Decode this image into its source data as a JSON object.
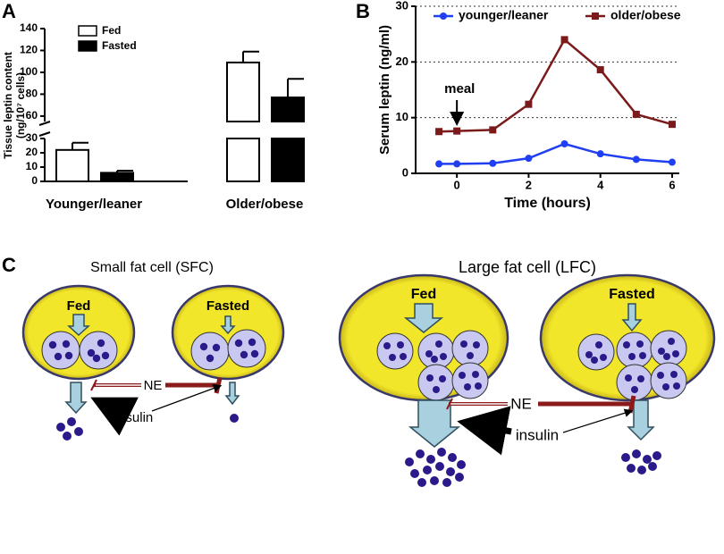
{
  "panels": {
    "a": "A",
    "b": "B",
    "c": "C"
  },
  "chart_data": [
    {
      "type": "bar",
      "y_label": [
        "Tissue leptin content",
        "(ng/10⁷ cells)"
      ],
      "categories": [
        "Younger/leaner",
        "Older/obese"
      ],
      "series": [
        {
          "name": "Fed",
          "color": "#ffffff",
          "values": [
            22,
            109
          ],
          "errors": [
            5,
            10
          ]
        },
        {
          "name": "Fasted",
          "color": "#000000",
          "values": [
            6,
            77
          ],
          "errors": [
            1.5,
            17
          ]
        }
      ],
      "y_segments": [
        {
          "ylim": [
            0,
            30
          ],
          "yticks": [
            0,
            10,
            20,
            30
          ]
        },
        {
          "ylim": [
            55,
            140
          ],
          "yticks": [
            60,
            80,
            100,
            120,
            140
          ]
        }
      ]
    },
    {
      "type": "line",
      "x_label": "Time (hours)",
      "y_label": "Serum leptin (ng/ml)",
      "x": [
        -0.5,
        0,
        1,
        2,
        3,
        4,
        5,
        6
      ],
      "series": [
        {
          "name": "younger/leaner",
          "color": "#1f3ff0",
          "marker": "circle",
          "values": [
            1.7,
            1.7,
            1.8,
            2.7,
            5.3,
            3.5,
            2.5,
            2.0
          ]
        },
        {
          "name": "older/obese",
          "color": "#7b1a1a",
          "marker": "square",
          "values": [
            7.5,
            7.6,
            7.8,
            12.4,
            24,
            18.6,
            10.6,
            8.8
          ]
        }
      ],
      "xlim": [
        -1.15,
        6.2
      ],
      "xticks": [
        0,
        2,
        4,
        6
      ],
      "ylim": [
        0,
        30
      ],
      "yticks": [
        0,
        10,
        20,
        30
      ],
      "grid": true,
      "annotation": {
        "text": "meal",
        "x": 0
      }
    }
  ],
  "diagram": {
    "sfc": {
      "title": "Small fat cell (SFC)",
      "fed": "Fed",
      "fasted": "Fasted",
      "ne": "NE",
      "insulin": "insulin"
    },
    "lfc": {
      "title": "Large fat cell (LFC)",
      "fed": "Fed",
      "fasted": "Fasted",
      "ne": "NE",
      "insulin": "insulin"
    }
  }
}
